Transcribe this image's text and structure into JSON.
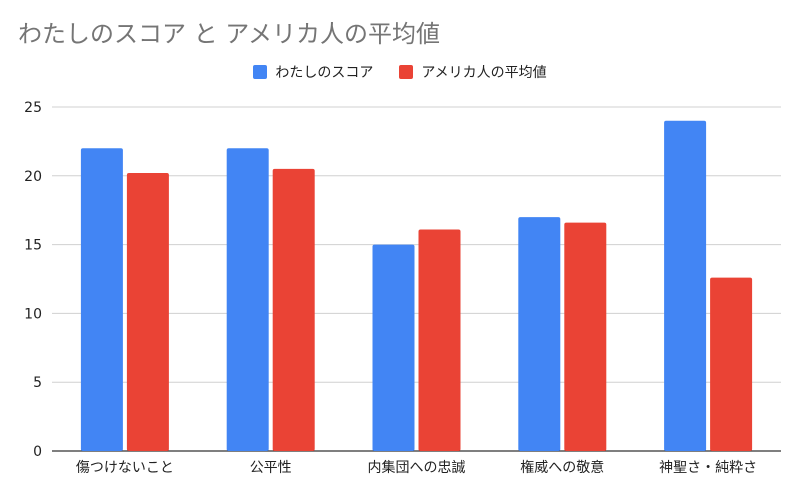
{
  "chart_data": {
    "type": "bar",
    "title": "わたしのスコア と アメリカ人の平均値",
    "categories": [
      "傷つけないこと",
      "公平性",
      "内集団への忠誠",
      "権威への敬意",
      "神聖さ・純粋さ"
    ],
    "series": [
      {
        "name": "わたしのスコア",
        "color": "#4285f4",
        "values": [
          22,
          22,
          15,
          17,
          24
        ]
      },
      {
        "name": "アメリカ人の平均値",
        "color": "#ea4335",
        "values": [
          20.2,
          20.5,
          16.1,
          16.6,
          12.6
        ]
      }
    ],
    "ylim": [
      0,
      25
    ],
    "yticks": [
      0,
      5,
      10,
      15,
      20,
      25
    ],
    "xlabel": "",
    "ylabel": "",
    "grid": true,
    "legend_position": "top"
  }
}
